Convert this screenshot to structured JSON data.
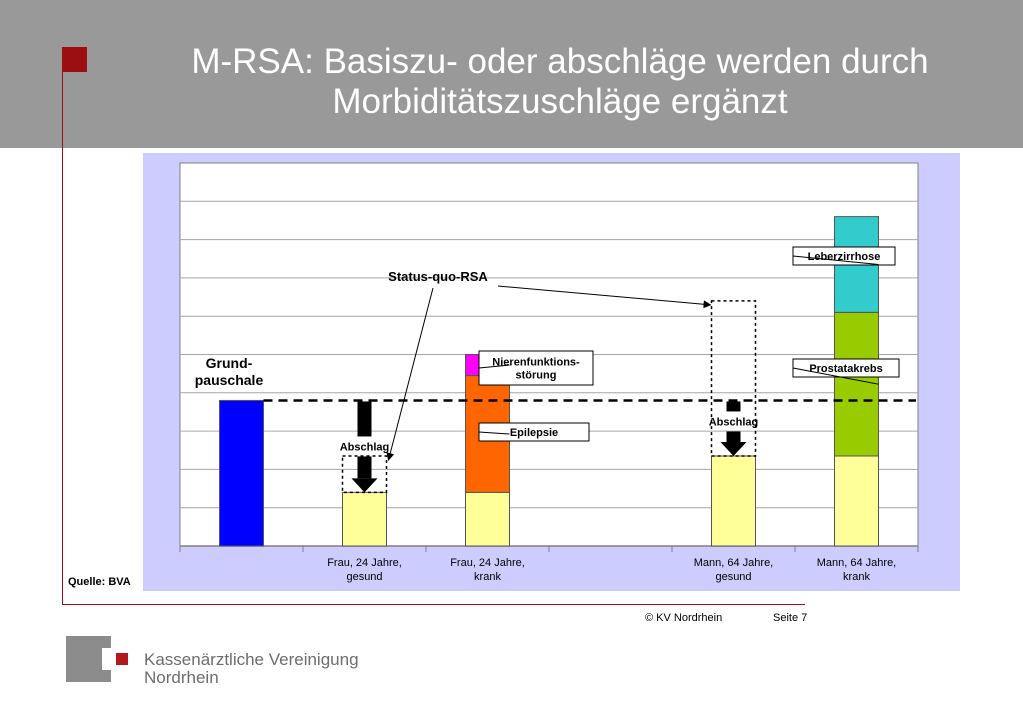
{
  "slide": {
    "title_line1": "M-RSA: Basiszu- oder abschläge werden durch",
    "title_line2": "Morbiditätszuschläge ergänzt",
    "source": "Quelle: BVA",
    "copyright": "© KV Nordrhein",
    "page": "Seite 7",
    "colors": {
      "header": "#999999",
      "accent": "#9b0f12",
      "chart_bg": "#ccccff"
    }
  },
  "logo": {
    "line1": "Kassenärztliche Vereinigung",
    "line2": "Nordrhein"
  },
  "chart_data": {
    "type": "bar",
    "stacked": true,
    "categories": [
      "",
      "Frau, 24 Jahre,\ngesund",
      "Frau, 24 Jahre,\nkrank",
      "",
      "Mann, 64 Jahre,\ngesund",
      "Mann, 64 Jahre,\nkrank"
    ],
    "ylim": [
      0,
      10
    ],
    "grid": true,
    "reference_line": {
      "value": 3.8,
      "style": "dashed"
    },
    "series": [
      {
        "color": "#0000ff",
        "values": [
          3.8,
          0,
          0,
          0,
          0,
          0
        ]
      },
      {
        "color": "#ffff99",
        "values": [
          0,
          1.4,
          1.4,
          0,
          2.35,
          2.35
        ]
      },
      {
        "name": "Epilepsie",
        "color": "#ff6600",
        "values": [
          0,
          0,
          3.05,
          0,
          0,
          0
        ]
      },
      {
        "name": "Nierenfunktions-\nstörung",
        "color": "#ff00ff",
        "values": [
          0,
          0,
          0.55,
          0,
          0,
          0
        ]
      },
      {
        "name": "Prostatakrebs",
        "color": "#99cc00",
        "values": [
          0,
          0,
          0,
          0,
          0,
          3.75
        ]
      },
      {
        "name": "Leberzirrhose",
        "color": "#33cccc",
        "values": [
          0,
          0,
          0,
          0,
          0,
          2.5
        ]
      }
    ],
    "status_quo_boxes": [
      {
        "category": 1,
        "from": 1.4,
        "to": 2.35
      },
      {
        "category": 4,
        "from": 2.35,
        "to": 6.4
      }
    ],
    "annotations": {
      "grundpauschale": "Grund-\npauschale",
      "status_quo": "Status-quo-RSA",
      "abschlag": "Abschlag"
    }
  }
}
